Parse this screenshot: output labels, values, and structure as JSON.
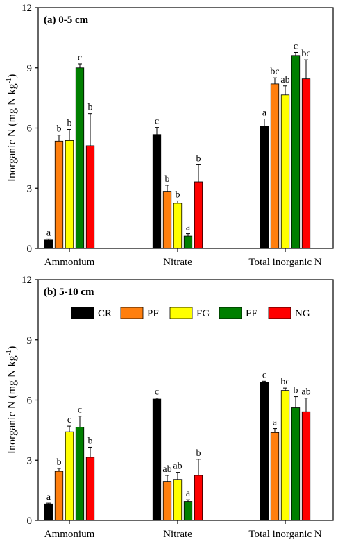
{
  "chart_data": [
    {
      "type": "bar",
      "title": "(a) 0-5 cm",
      "ylabel": "Inorganic N (mg N kg",
      "ylabel_sup": "-1",
      "ylabel_close": ")",
      "ylim": [
        0,
        12
      ],
      "yticks": [
        "0",
        "3",
        "6",
        "9",
        "12"
      ],
      "categories": [
        "Ammonium",
        "Nitrate",
        "Total inorganic N"
      ],
      "legend": false,
      "series": [
        {
          "name": "CR",
          "color": "#000000",
          "values": [
            0.42,
            5.68,
            6.1
          ],
          "errors": [
            0.05,
            0.35,
            0.35
          ],
          "letters": [
            "a",
            "c",
            "a"
          ]
        },
        {
          "name": "PF",
          "color": "#ff7f0e",
          "values": [
            5.35,
            2.85,
            8.2
          ],
          "errors": [
            0.3,
            0.3,
            0.3
          ],
          "letters": [
            "b",
            "b",
            "bc"
          ]
        },
        {
          "name": "FG",
          "color": "#ffff00",
          "values": [
            5.38,
            2.25,
            7.65
          ],
          "errors": [
            0.55,
            0.12,
            0.45
          ],
          "letters": [
            "b",
            "b",
            "ab"
          ]
        },
        {
          "name": "FF",
          "color": "#007f00",
          "values": [
            9.0,
            0.62,
            9.62
          ],
          "errors": [
            0.2,
            0.12,
            0.15
          ],
          "letters": [
            "c",
            "a",
            "c"
          ]
        },
        {
          "name": "NG",
          "color": "#ff0000",
          "values": [
            5.12,
            3.32,
            8.45
          ],
          "errors": [
            1.6,
            0.85,
            0.95
          ],
          "letters": [
            "b",
            "b",
            "bc"
          ]
        }
      ]
    },
    {
      "type": "bar",
      "title": "(b) 5-10 cm",
      "ylabel": "Inorganic N (mg N kg",
      "ylabel_sup": "-1",
      "ylabel_close": ")",
      "ylim": [
        0,
        12
      ],
      "yticks": [
        "0",
        "3",
        "6",
        "9",
        "12"
      ],
      "categories": [
        "Ammonium",
        "Nitrate",
        "Total inorganic N"
      ],
      "legend": true,
      "legend_position": "top",
      "series": [
        {
          "name": "CR",
          "color": "#000000",
          "values": [
            0.82,
            6.05,
            6.9
          ],
          "errors": [
            0.04,
            0.05,
            0.04
          ],
          "letters": [
            "a",
            "c",
            "c"
          ]
        },
        {
          "name": "PF",
          "color": "#ff7f0e",
          "values": [
            2.45,
            1.95,
            4.38
          ],
          "errors": [
            0.15,
            0.3,
            0.2
          ],
          "letters": [
            "b",
            "ab",
            "a"
          ]
        },
        {
          "name": "FG",
          "color": "#ffff00",
          "values": [
            4.42,
            2.05,
            6.48
          ],
          "errors": [
            0.28,
            0.35,
            0.12
          ],
          "letters": [
            "c",
            "ab",
            "bc"
          ]
        },
        {
          "name": "FF",
          "color": "#007f00",
          "values": [
            4.65,
            0.95,
            5.62
          ],
          "errors": [
            0.55,
            0.08,
            0.55
          ],
          "letters": [
            "c",
            "a",
            "b"
          ]
        },
        {
          "name": "NG",
          "color": "#ff0000",
          "values": [
            3.15,
            2.25,
            5.42
          ],
          "errors": [
            0.5,
            0.8,
            0.68
          ],
          "letters": [
            "b",
            "b",
            "ab"
          ]
        }
      ]
    }
  ]
}
